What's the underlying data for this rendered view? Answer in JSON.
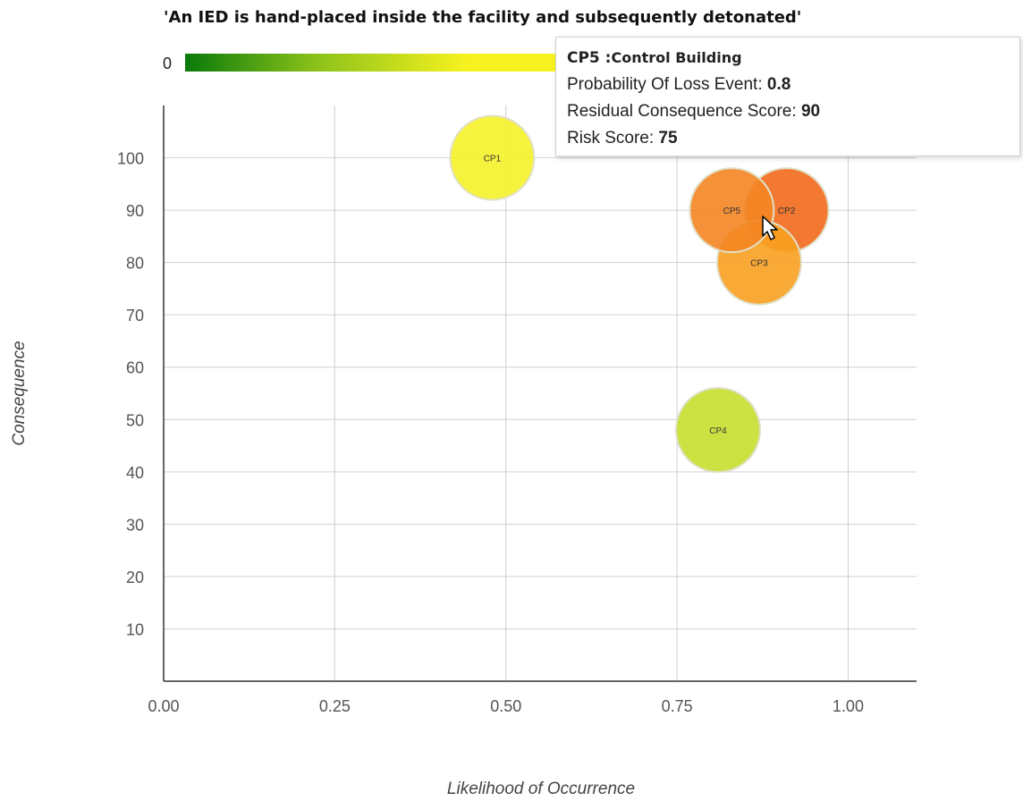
{
  "chart_data": {
    "type": "scatter",
    "title": "'An IED is hand-placed inside the facility and subsequently detonated'",
    "xlabel": "Likelihood of Occurrence",
    "ylabel": "Consequence",
    "xlim": [
      0.0,
      1.1
    ],
    "ylim": [
      0,
      110
    ],
    "x_ticks": [
      "0.00",
      "0.25",
      "0.50",
      "0.75",
      "1.00"
    ],
    "y_ticks": [
      "10",
      "20",
      "30",
      "40",
      "50",
      "60",
      "70",
      "80",
      "90",
      "100"
    ],
    "grid": true,
    "color_scale_min": "0",
    "points": [
      {
        "label": "CP1",
        "x": 0.48,
        "y": 100,
        "color": "#f5f22a"
      },
      {
        "label": "CP2",
        "x": 0.91,
        "y": 90,
        "color": "#f26a1c"
      },
      {
        "label": "CP3",
        "x": 0.87,
        "y": 80,
        "color": "#f8a020"
      },
      {
        "label": "CP4",
        "x": 0.81,
        "y": 48,
        "color": "#c7de2e"
      },
      {
        "label": "CP5",
        "x": 0.83,
        "y": 90,
        "color": "#f48522"
      }
    ]
  },
  "tooltip": {
    "id": "CP5 :",
    "name": "Control Building",
    "prob_label": "Probability Of Loss Event: ",
    "prob_value": "0.8",
    "residual_label": "Residual Consequence Score: ",
    "residual_value": "90",
    "risk_label": "Risk Score: ",
    "risk_value": "75"
  }
}
